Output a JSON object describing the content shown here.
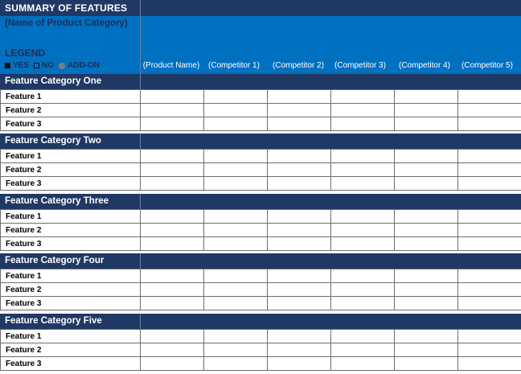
{
  "title": "SUMMARY OF FEATURES",
  "subtitle": "(Name of Product Category)",
  "legend": {
    "heading": "LEGEND",
    "items": [
      {
        "label": "YES",
        "icon": "filled-square-icon"
      },
      {
        "label": "NO",
        "icon": "empty-square-icon"
      },
      {
        "label": "ADD-ON",
        "icon": "gray-circle-icon"
      }
    ]
  },
  "columns": [
    "(Product Name)",
    "(Competitor 1)",
    "(Competitor 2)",
    "(Competitor 3)",
    "(Competitor 4)",
    "(Competitor 5)"
  ],
  "categories": [
    {
      "name": "Feature Category One",
      "features": [
        "Feature 1",
        "Feature 2",
        "Feature 3"
      ]
    },
    {
      "name": "Feature Category Two",
      "features": [
        "Feature 1",
        "Feature 2",
        "Feature 3"
      ]
    },
    {
      "name": "Feature Category Three",
      "features": [
        "Feature 1",
        "Feature 2",
        "Feature 3"
      ]
    },
    {
      "name": "Feature Category Four",
      "features": [
        "Feature 1",
        "Feature 2",
        "Feature 3"
      ]
    },
    {
      "name": "Feature Category Five",
      "features": [
        "Feature 1",
        "Feature 2",
        "Feature 3"
      ]
    }
  ],
  "colors": {
    "dark_navy": "#203864",
    "header_blue": "#0070c0",
    "grid_line": "#6e6e6e"
  }
}
